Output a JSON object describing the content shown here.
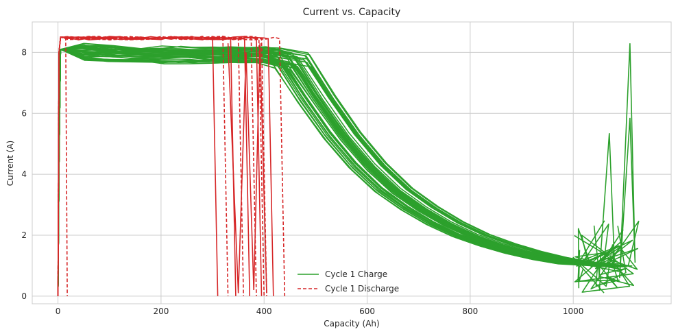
{
  "chart_data": {
    "type": "line",
    "title": "Current vs. Capacity",
    "xlabel": "Capacity (Ah)",
    "ylabel": "Current (A)",
    "xlim": [
      -50,
      1190
    ],
    "ylim": [
      -0.25,
      9.0
    ],
    "xticks": [
      0,
      200,
      400,
      600,
      800,
      1000
    ],
    "yticks": [
      0,
      2,
      4,
      6,
      8
    ],
    "grid": true,
    "legend_position": "bottom-center",
    "series": [
      {
        "name": "Cycle 1 Charge",
        "color": "#2ca02c",
        "style": "solid",
        "x": [
          0,
          2,
          5,
          50,
          100,
          150,
          200,
          250,
          300,
          350,
          400,
          450,
          500,
          550,
          600,
          650,
          700,
          750,
          800,
          850,
          900,
          950,
          1000,
          1050,
          1100,
          1130
        ],
        "y": [
          0.0,
          4.2,
          8.1,
          8.1,
          8.05,
          8.0,
          8.0,
          8.0,
          8.0,
          8.0,
          8.0,
          7.8,
          6.5,
          5.3,
          4.3,
          3.5,
          2.9,
          2.4,
          2.0,
          1.7,
          1.45,
          1.25,
          1.1,
          1.05,
          1.0,
          1.0
        ]
      },
      {
        "name": "Cycle 1 Discharge",
        "color": "#d62728",
        "style": "dashed",
        "x": [
          0,
          2,
          5,
          50,
          100,
          150,
          200,
          250,
          300,
          350,
          380,
          390,
          395,
          400,
          410,
          420
        ],
        "y": [
          0.0,
          8.0,
          8.5,
          8.5,
          8.45,
          8.5,
          8.45,
          8.5,
          8.5,
          8.5,
          8.5,
          8.5,
          8.45,
          8.0,
          4.0,
          0.0
        ]
      }
    ]
  }
}
